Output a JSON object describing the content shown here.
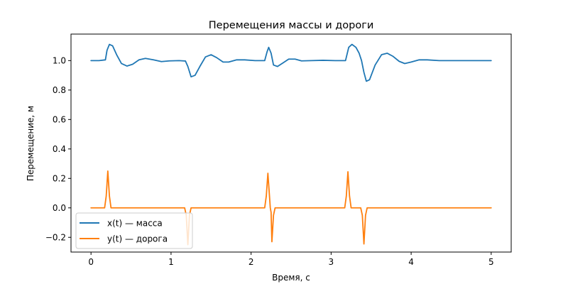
{
  "chart_data": {
    "type": "line",
    "title": "Перемещения массы и дороги",
    "xlabel": "Время, с",
    "ylabel": "Перемещение, м",
    "xlim": [
      -0.25,
      5.25
    ],
    "ylim": [
      -0.3,
      1.18
    ],
    "x_ticks": [
      0,
      1,
      2,
      3,
      4,
      5
    ],
    "x_tick_labels": [
      "0",
      "1",
      "2",
      "3",
      "4",
      "5"
    ],
    "y_ticks": [
      -0.2,
      0.0,
      0.2,
      0.4,
      0.6,
      0.8,
      1.0
    ],
    "y_tick_labels": [
      "−0.2",
      "0.0",
      "0.2",
      "0.4",
      "0.6",
      "0.8",
      "1.0"
    ],
    "grid": false,
    "legend_position": "lower-left",
    "series": [
      {
        "name": "x(t) — масса",
        "color": "#1f77b4",
        "points": [
          [
            0.0,
            1.0
          ],
          [
            0.1,
            1.0
          ],
          [
            0.18,
            1.005
          ],
          [
            0.2,
            1.07
          ],
          [
            0.23,
            1.11
          ],
          [
            0.27,
            1.1
          ],
          [
            0.32,
            1.04
          ],
          [
            0.38,
            0.98
          ],
          [
            0.45,
            0.963
          ],
          [
            0.52,
            0.975
          ],
          [
            0.6,
            1.005
          ],
          [
            0.68,
            1.015
          ],
          [
            0.78,
            1.005
          ],
          [
            0.88,
            0.993
          ],
          [
            0.98,
            0.998
          ],
          [
            1.1,
            1.0
          ],
          [
            1.18,
            0.997
          ],
          [
            1.21,
            0.96
          ],
          [
            1.25,
            0.89
          ],
          [
            1.3,
            0.9
          ],
          [
            1.36,
            0.96
          ],
          [
            1.43,
            1.025
          ],
          [
            1.5,
            1.04
          ],
          [
            1.57,
            1.02
          ],
          [
            1.65,
            0.99
          ],
          [
            1.72,
            0.99
          ],
          [
            1.82,
            1.005
          ],
          [
            1.92,
            1.005
          ],
          [
            2.05,
            1.0
          ],
          [
            2.17,
            1.0
          ],
          [
            2.2,
            1.06
          ],
          [
            2.22,
            1.09
          ],
          [
            2.25,
            1.05
          ],
          [
            2.28,
            0.97
          ],
          [
            2.33,
            0.96
          ],
          [
            2.4,
            0.985
          ],
          [
            2.47,
            1.01
          ],
          [
            2.55,
            1.01
          ],
          [
            2.63,
            0.998
          ],
          [
            2.75,
            1.0
          ],
          [
            2.9,
            1.002
          ],
          [
            3.05,
            1.0
          ],
          [
            3.18,
            1.0
          ],
          [
            3.22,
            1.09
          ],
          [
            3.26,
            1.11
          ],
          [
            3.31,
            1.09
          ],
          [
            3.35,
            1.05
          ],
          [
            3.38,
            1.0
          ],
          [
            3.41,
            0.92
          ],
          [
            3.44,
            0.86
          ],
          [
            3.48,
            0.87
          ],
          [
            3.55,
            0.97
          ],
          [
            3.63,
            1.04
          ],
          [
            3.7,
            1.05
          ],
          [
            3.77,
            1.03
          ],
          [
            3.85,
            0.995
          ],
          [
            3.92,
            0.98
          ],
          [
            4.0,
            0.99
          ],
          [
            4.1,
            1.005
          ],
          [
            4.2,
            1.005
          ],
          [
            4.35,
            1.0
          ],
          [
            4.6,
            1.0
          ],
          [
            5.0,
            1.0
          ]
        ]
      },
      {
        "name": "y(t) — дорога",
        "color": "#ff7f0e",
        "points": [
          [
            0.0,
            0.0
          ],
          [
            0.17,
            0.0
          ],
          [
            0.19,
            0.08
          ],
          [
            0.21,
            0.25
          ],
          [
            0.23,
            0.08
          ],
          [
            0.25,
            0.0
          ],
          [
            1.17,
            0.0
          ],
          [
            1.19,
            -0.05
          ],
          [
            1.21,
            -0.25
          ],
          [
            1.23,
            -0.05
          ],
          [
            1.25,
            0.0
          ],
          [
            2.17,
            0.0
          ],
          [
            2.19,
            0.08
          ],
          [
            2.21,
            0.235
          ],
          [
            2.23,
            0.08
          ],
          [
            2.24,
            0.0
          ],
          [
            2.25,
            -0.03
          ],
          [
            2.26,
            -0.23
          ],
          [
            2.28,
            -0.05
          ],
          [
            2.3,
            0.0
          ],
          [
            3.17,
            0.0
          ],
          [
            3.19,
            0.08
          ],
          [
            3.21,
            0.245
          ],
          [
            3.23,
            0.08
          ],
          [
            3.25,
            0.0
          ],
          [
            3.37,
            0.0
          ],
          [
            3.39,
            -0.05
          ],
          [
            3.41,
            -0.245
          ],
          [
            3.43,
            -0.05
          ],
          [
            3.45,
            0.0
          ],
          [
            5.0,
            0.0
          ]
        ]
      }
    ]
  }
}
